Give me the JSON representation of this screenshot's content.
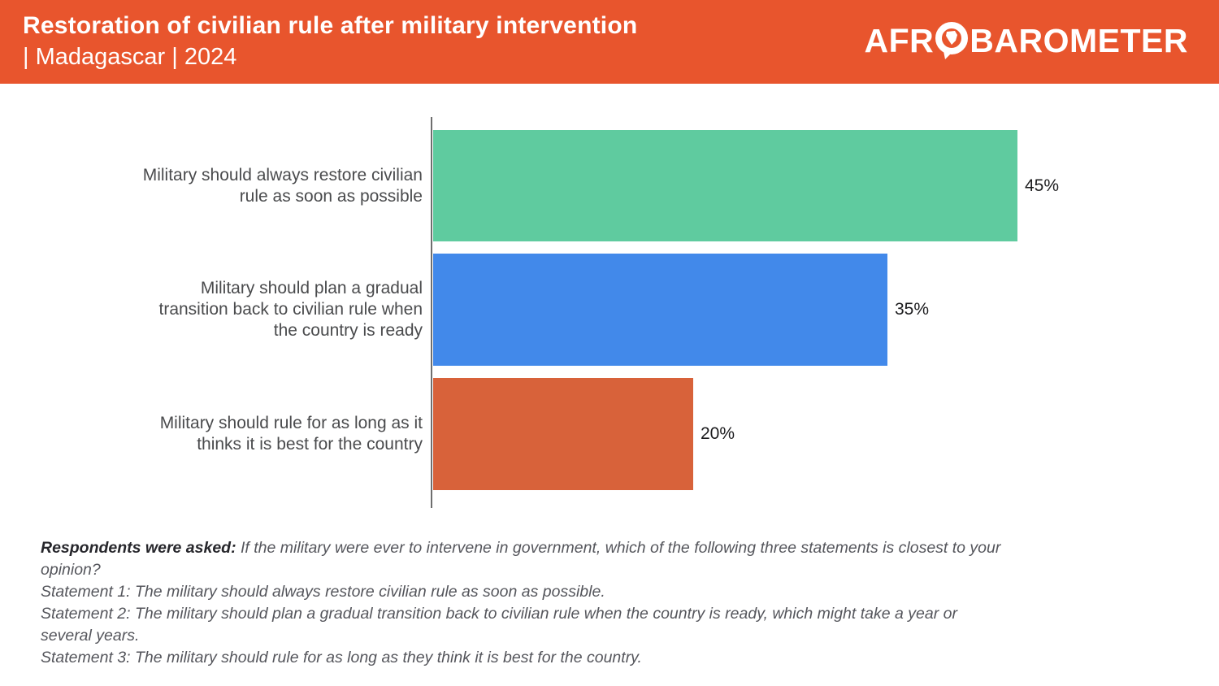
{
  "header": {
    "title_line1": "Restoration of civilian rule after military intervention",
    "title_line2": "| Madagascar | 2024",
    "background_color": "#E8552D",
    "logo": {
      "part1": "AFR",
      "part2": "BAROMETER",
      "icon": "africa-speech-bubble-icon"
    }
  },
  "chart_data": {
    "type": "bar",
    "orientation": "horizontal",
    "title": "Restoration of civilian rule after military intervention | Madagascar | 2024",
    "categories": [
      "Military should always restore civilian rule as soon as possible",
      "Military should plan a gradual transition back to civilian rule when the country is ready",
      "Military should rule for as long as it thinks it is best for the country"
    ],
    "category_lines": [
      [
        "Military should always restore civilian",
        "rule as soon as possible"
      ],
      [
        "Military should plan a gradual",
        "transition back to civilian rule when",
        "the country is ready"
      ],
      [
        "Military should rule for as long as it",
        "thinks it is best for the country"
      ]
    ],
    "values": [
      45,
      35,
      20
    ],
    "value_labels": [
      "45%",
      "35%",
      "20%"
    ],
    "bar_colors": [
      "#5FCB9F",
      "#4289EA",
      "#D8623A"
    ],
    "xlabel": "",
    "ylabel": "",
    "xlim": [
      0,
      60
    ],
    "grid": false,
    "legend": false
  },
  "footer": {
    "intro_bold": "Respondents were asked:",
    "intro_rest": " If the military were ever to intervene in government, which of the following three statements is closest to your",
    "lines": [
      "opinion?",
      "Statement 1: The military should always restore civilian rule as soon as possible.",
      "Statement 2: The military should plan a gradual transition back to civilian rule when the country is ready, which might take a year or",
      "several years.",
      "Statement 3: The military should rule for as long as they think it is best for the country."
    ]
  }
}
